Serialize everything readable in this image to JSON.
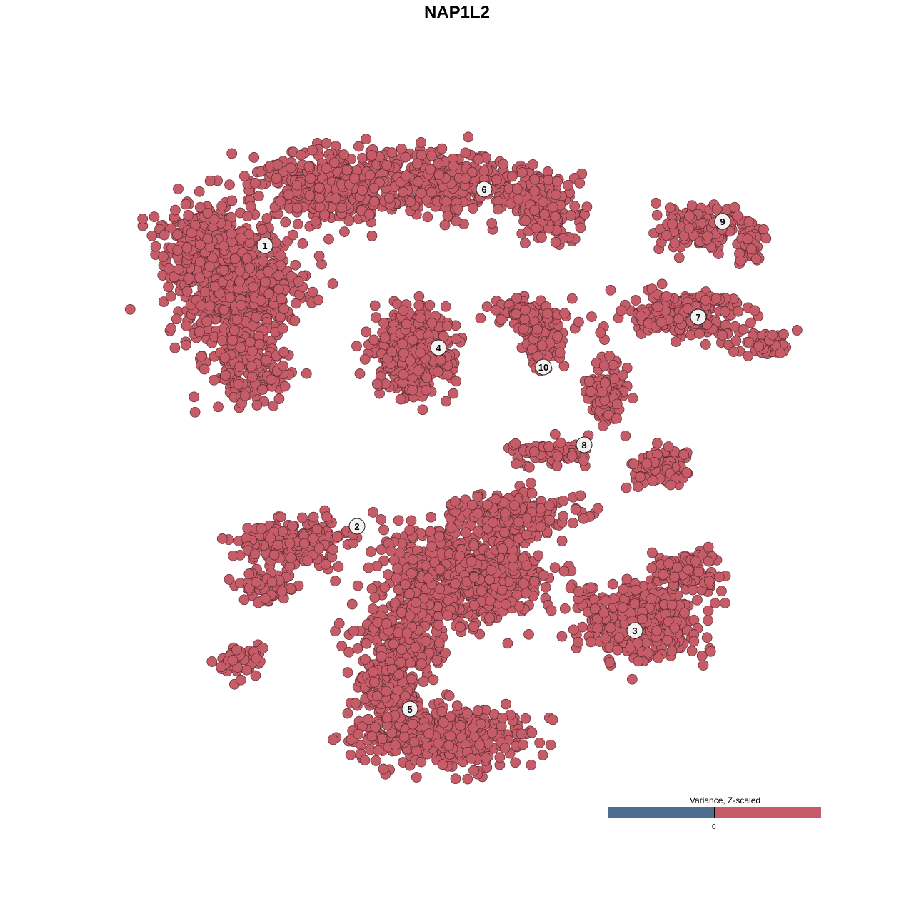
{
  "chart_data": {
    "type": "scatter",
    "title": "NAP1L2",
    "xlabel": "",
    "ylabel": "",
    "grid": false,
    "point_color": "#c55c68",
    "point_stroke": "#5a2a30",
    "clusters": [
      {
        "label": "1",
        "x": -26.9,
        "y": 29.6
      },
      {
        "label": "2",
        "x": -14.0,
        "y": -9.7
      },
      {
        "label": "3",
        "x": 24.9,
        "y": -24.3
      },
      {
        "label": "4",
        "x": -2.6,
        "y": 15.3
      },
      {
        "label": "5",
        "x": -6.6,
        "y": -35.3
      },
      {
        "label": "6",
        "x": 3.8,
        "y": 37.5
      },
      {
        "label": "7",
        "x": 33.8,
        "y": 19.6
      },
      {
        "label": "8",
        "x": 17.8,
        "y": 1.7
      },
      {
        "label": "9",
        "x": 37.2,
        "y": 33.0
      },
      {
        "label": "10",
        "x": 12.1,
        "y": 12.6
      }
    ],
    "legend": {
      "title": "Variance, Z-scaled",
      "tick": "0",
      "low_color": "#4f6d8f",
      "high_color": "#c55c68",
      "placement": "bottom-right"
    }
  }
}
